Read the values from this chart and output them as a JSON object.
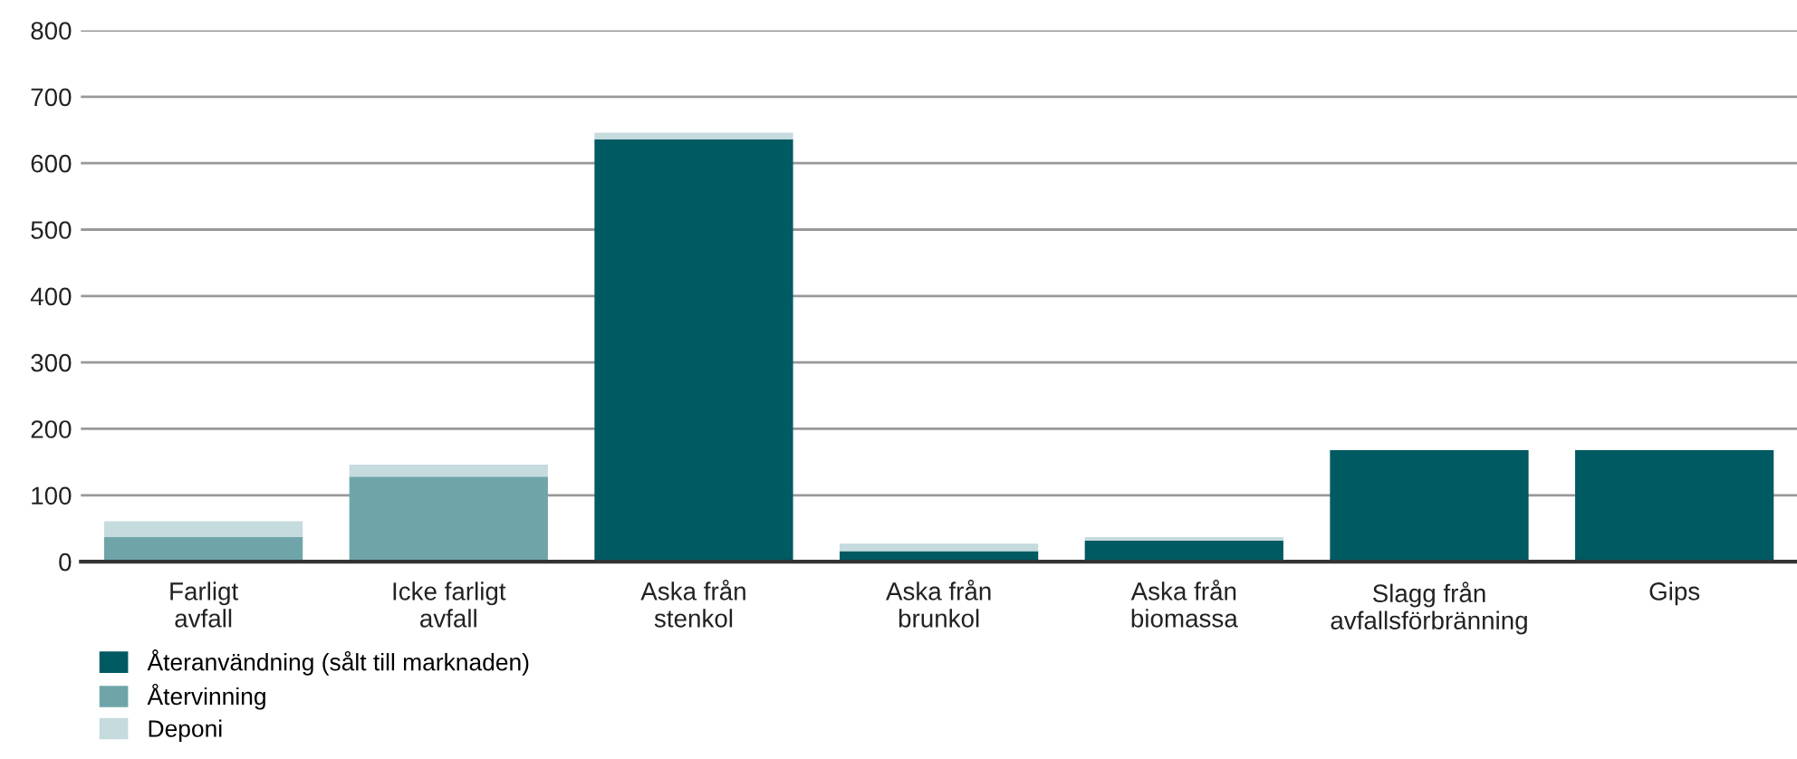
{
  "chart_data": {
    "type": "bar",
    "stacked": true,
    "categories": [
      "Farligt\navfall",
      "Icke farligt\navfall",
      "Aska från\nstenkol",
      "Aska från\nbrunkol",
      "Aska från\nbiomassa",
      "Slagg från\navfallsförbränning",
      "Gips"
    ],
    "series": [
      {
        "name": "Återanvändning (sålt till marknaden)",
        "color": "#005a62",
        "values": [
          0,
          0,
          636,
          16,
          32,
          168,
          168
        ]
      },
      {
        "name": "Återvinning",
        "color": "#6fa5a9",
        "values": [
          37,
          128,
          0,
          0,
          0,
          0,
          0
        ]
      },
      {
        "name": "Deponi",
        "color": "#c5dbdd",
        "values": [
          24,
          18,
          10,
          11,
          5,
          0,
          null
        ]
      }
    ],
    "ylim": [
      0,
      800
    ],
    "yticks": [
      0,
      100,
      200,
      300,
      400,
      500,
      600,
      700,
      800
    ],
    "grid": "y",
    "legend": "bottom left"
  }
}
